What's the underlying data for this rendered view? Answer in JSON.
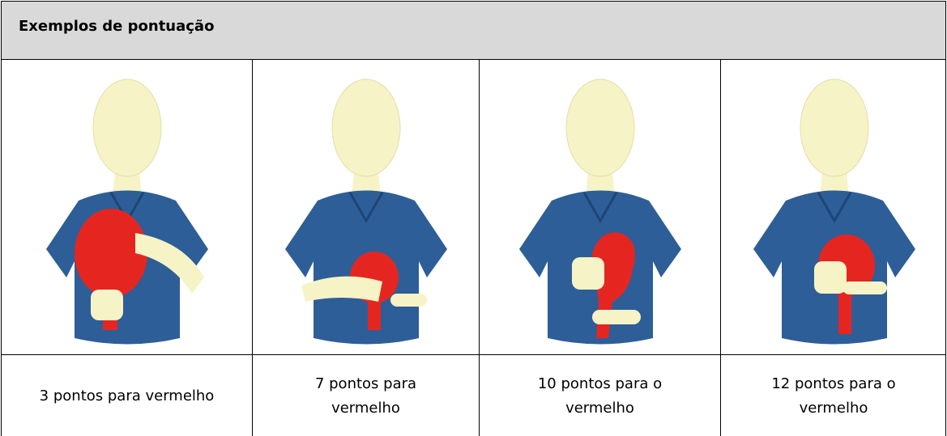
{
  "header": {
    "title": "Exemplos de pontuação"
  },
  "table": {
    "captions": [
      "3 pontos para vermelho",
      "7 pontos para vermelho",
      "10 pontos para o vermelho",
      "12 pontos para o vermelho"
    ]
  }
}
